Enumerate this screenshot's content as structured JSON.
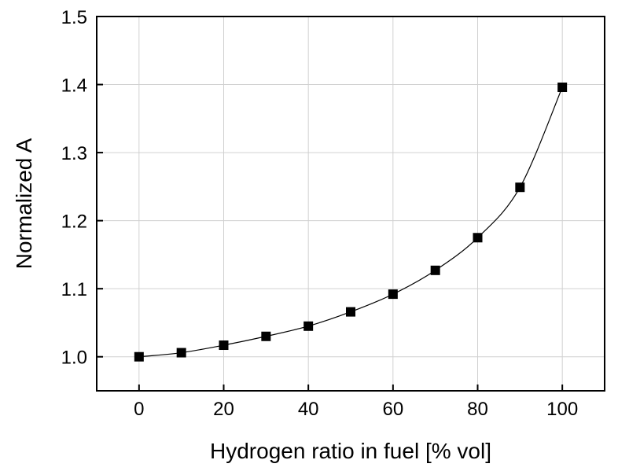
{
  "chart_data": {
    "type": "line",
    "title": "",
    "xlabel": "Hydrogen ratio in fuel [% vol]",
    "ylabel": "Normalized A",
    "xlim": [
      -10,
      110
    ],
    "ylim": [
      0.95,
      1.5
    ],
    "x_ticks": [
      0,
      20,
      40,
      60,
      80,
      100
    ],
    "y_ticks": [
      1.0,
      1.1,
      1.2,
      1.3,
      1.4,
      1.5
    ],
    "x_tick_labels": [
      "0",
      "20",
      "40",
      "60",
      "80",
      "100"
    ],
    "y_tick_labels": [
      "1.0",
      "1.1",
      "1.2",
      "1.3",
      "1.4",
      "1.5"
    ],
    "grid": true,
    "legend": "none",
    "series": [
      {
        "marker": "square",
        "color": "#000000",
        "x": [
          0,
          10,
          20,
          30,
          40,
          50,
          60,
          70,
          80,
          90,
          100
        ],
        "y": [
          1.0,
          1.006,
          1.017,
          1.03,
          1.045,
          1.066,
          1.092,
          1.127,
          1.175,
          1.249,
          1.396
        ]
      }
    ]
  }
}
